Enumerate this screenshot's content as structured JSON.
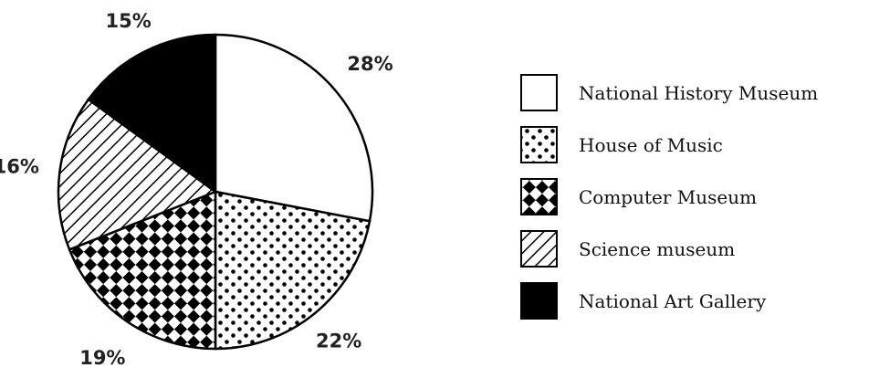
{
  "chart_data": {
    "type": "pie",
    "title": "",
    "slices": [
      {
        "label": "National History Museum",
        "value": 28,
        "value_label": "28%",
        "pattern": "blank"
      },
      {
        "label": "House of Music",
        "value": 22,
        "value_label": "22%",
        "pattern": "dots"
      },
      {
        "label": "Computer Museum",
        "value": 19,
        "value_label": "19%",
        "pattern": "checker-diamond"
      },
      {
        "label": "Science museum",
        "value": 16,
        "value_label": "16%",
        "pattern": "diagonal-hatch"
      },
      {
        "label": "National Art Gallery",
        "value": 15,
        "value_label": "15%",
        "pattern": "solid-black"
      }
    ],
    "start_angle": "12 o'clock",
    "direction": "clockwise",
    "legend_position": "right"
  },
  "colors": {
    "outline": "#000000",
    "fill": "#ffffff",
    "solid": "#000000"
  }
}
